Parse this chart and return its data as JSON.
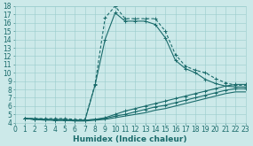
{
  "xlabel": "Humidex (Indice chaleur)",
  "xlim": [
    0,
    23
  ],
  "ylim": [
    4,
    18
  ],
  "xticks": [
    0,
    1,
    2,
    3,
    4,
    5,
    6,
    7,
    8,
    9,
    10,
    11,
    12,
    13,
    14,
    15,
    16,
    17,
    18,
    19,
    20,
    21,
    22,
    23
  ],
  "yticks": [
    4,
    5,
    6,
    7,
    8,
    9,
    10,
    11,
    12,
    13,
    14,
    15,
    16,
    17,
    18
  ],
  "bg_color": "#cce9e9",
  "grid_color": "#99cccc",
  "line_color": "#1a6b6b",
  "curve1_x": [
    1,
    2,
    3,
    4,
    5,
    6,
    7,
    8,
    9,
    10,
    11,
    12,
    13,
    14,
    15,
    16,
    17,
    18,
    19,
    20,
    21,
    22,
    23
  ],
  "curve1_y": [
    4.5,
    4.5,
    4.5,
    4.5,
    4.5,
    4.4,
    4.4,
    8.6,
    16.6,
    18.0,
    16.5,
    16.5,
    16.5,
    16.5,
    15.0,
    12.2,
    10.8,
    10.3,
    10.0,
    9.3,
    8.8,
    8.5,
    8.5
  ],
  "curve2_x": [
    1,
    2,
    3,
    4,
    5,
    6,
    7,
    8,
    9,
    10,
    11,
    12,
    13,
    14,
    15,
    16,
    17,
    18,
    19,
    20,
    21,
    22,
    23
  ],
  "curve2_y": [
    4.5,
    4.5,
    4.4,
    4.4,
    4.4,
    4.3,
    4.3,
    8.5,
    14.0,
    17.2,
    16.2,
    16.2,
    16.2,
    15.8,
    14.2,
    11.5,
    10.5,
    10.0,
    9.2,
    8.7,
    8.4,
    8.3,
    8.3
  ],
  "curve3_x": [
    1,
    2,
    3,
    4,
    5,
    6,
    7,
    8,
    9,
    10,
    11,
    12,
    13,
    14,
    15,
    16,
    17,
    18,
    19,
    20,
    21,
    22,
    23
  ],
  "curve3_y": [
    4.5,
    4.4,
    4.4,
    4.3,
    4.3,
    4.3,
    4.3,
    4.4,
    4.6,
    5.0,
    5.4,
    5.7,
    6.0,
    6.3,
    6.6,
    6.9,
    7.2,
    7.5,
    7.8,
    8.1,
    8.4,
    8.6,
    8.6
  ],
  "curve4_x": [
    1,
    2,
    3,
    4,
    5,
    6,
    7,
    8,
    9,
    10,
    11,
    12,
    13,
    14,
    15,
    16,
    17,
    18,
    19,
    20,
    21,
    22,
    23
  ],
  "curve4_y": [
    4.5,
    4.4,
    4.4,
    4.3,
    4.3,
    4.3,
    4.3,
    4.4,
    4.5,
    4.8,
    5.0,
    5.3,
    5.6,
    5.9,
    6.1,
    6.4,
    6.7,
    7.0,
    7.3,
    7.6,
    7.9,
    8.1,
    8.1
  ],
  "curve5_x": [
    1,
    2,
    3,
    4,
    5,
    6,
    7,
    8,
    9,
    10,
    11,
    12,
    13,
    14,
    15,
    16,
    17,
    18,
    19,
    20,
    21,
    22,
    23
  ],
  "curve5_y": [
    4.5,
    4.4,
    4.3,
    4.3,
    4.3,
    4.2,
    4.2,
    4.3,
    4.4,
    4.6,
    4.8,
    5.0,
    5.2,
    5.5,
    5.7,
    6.0,
    6.3,
    6.6,
    6.9,
    7.2,
    7.5,
    7.7,
    7.7
  ],
  "tick_font_size": 5.5,
  "label_font_size": 6.5
}
